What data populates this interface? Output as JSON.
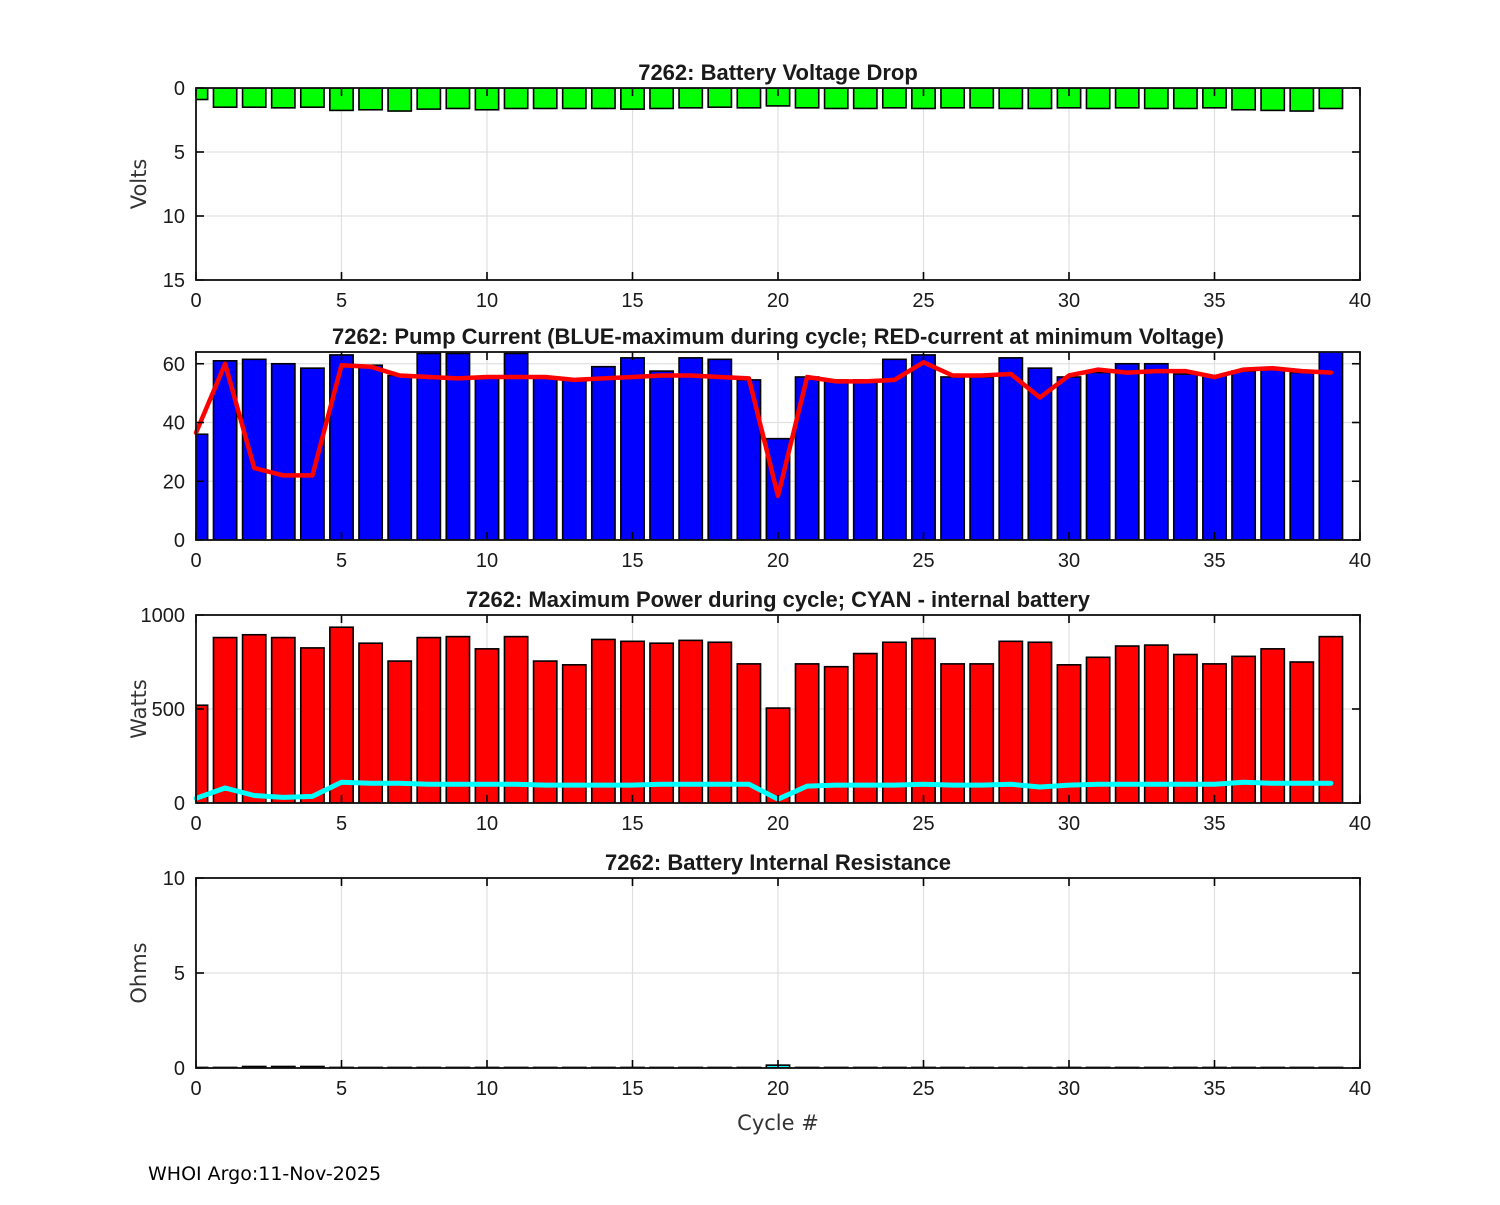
{
  "page": {
    "footer": "WHOI Argo:11-Nov-2025",
    "float_id": "7262"
  },
  "chart_data": [
    {
      "key": "battery_voltage_drop",
      "type": "bar",
      "title": "7262: Battery Voltage Drop",
      "ylabel": "Volts",
      "xlabel": null,
      "ylim": [
        0,
        15
      ],
      "y_reversed": true,
      "yticks": [
        0,
        5,
        10,
        15
      ],
      "xlim": [
        0,
        40
      ],
      "xticks": [
        0,
        5,
        10,
        15,
        20,
        25,
        30,
        35,
        40
      ],
      "grid": true,
      "bars": {
        "name": "voltage-drop-bar",
        "color": "#00FF00",
        "edge": "#000000",
        "width": 0.8,
        "values": [
          0.9,
          1.5,
          1.5,
          1.55,
          1.5,
          1.75,
          1.7,
          1.8,
          1.65,
          1.6,
          1.7,
          1.6,
          1.6,
          1.6,
          1.6,
          1.65,
          1.6,
          1.55,
          1.5,
          1.55,
          1.4,
          1.55,
          1.6,
          1.6,
          1.55,
          1.6,
          1.55,
          1.55,
          1.6,
          1.6,
          1.55,
          1.6,
          1.55,
          1.6,
          1.6,
          1.55,
          1.7,
          1.75,
          1.8,
          1.6
        ]
      },
      "line": null
    },
    {
      "key": "pump_current",
      "type": "bar+line",
      "title": "7262: Pump Current (BLUE-maximum during cycle; RED-current at minimum Voltage)",
      "ylabel": null,
      "xlabel": null,
      "ylim": [
        0,
        64
      ],
      "y_reversed": false,
      "yticks": [
        0,
        20,
        40,
        60
      ],
      "xlim": [
        0,
        40
      ],
      "xticks": [
        0,
        5,
        10,
        15,
        20,
        25,
        30,
        35,
        40
      ],
      "grid": true,
      "bars": {
        "name": "max-current-bar",
        "color": "#0000FF",
        "edge": "#000000",
        "width": 0.8,
        "values": [
          36,
          61,
          61.5,
          60,
          58.5,
          63,
          59.5,
          56,
          63.5,
          63.5,
          55.5,
          63.5,
          55.5,
          54.5,
          59,
          62,
          57.5,
          62,
          61.5,
          54.5,
          34.5,
          55.5,
          54.5,
          54.5,
          61.5,
          63,
          55.5,
          55.5,
          62,
          58.5,
          55.5,
          57,
          60,
          60,
          56.5,
          56,
          57.5,
          58,
          57,
          65
        ]
      },
      "line": {
        "name": "current-at-min-voltage-line",
        "color": "#FF0000",
        "width": 4.5,
        "values": [
          36.5,
          60,
          24.5,
          22,
          22,
          59.5,
          59,
          56,
          55.5,
          55,
          55.5,
          55.5,
          55.5,
          54.5,
          55,
          55.5,
          56,
          56,
          55.5,
          55,
          15,
          55.5,
          54,
          54,
          54.5,
          60.5,
          56,
          56,
          56.5,
          48.5,
          56,
          58,
          57,
          57.5,
          57.5,
          55.5,
          58,
          58.5,
          57.5,
          57
        ]
      }
    },
    {
      "key": "max_power",
      "type": "bar+line",
      "title": "7262: Maximum Power during cycle; CYAN - internal battery",
      "ylabel": "Watts",
      "xlabel": null,
      "ylim": [
        0,
        1000
      ],
      "y_reversed": false,
      "yticks": [
        0,
        500,
        1000
      ],
      "xlim": [
        0,
        40
      ],
      "xticks": [
        0,
        5,
        10,
        15,
        20,
        25,
        30,
        35,
        40
      ],
      "grid": true,
      "bars": {
        "name": "max-power-bar",
        "color": "#FF0000",
        "edge": "#000000",
        "width": 0.8,
        "values": [
          520,
          880,
          895,
          880,
          825,
          935,
          850,
          755,
          880,
          885,
          820,
          885,
          755,
          735,
          870,
          860,
          850,
          865,
          855,
          740,
          505,
          740,
          725,
          795,
          855,
          875,
          740,
          740,
          860,
          855,
          735,
          775,
          835,
          840,
          790,
          740,
          780,
          820,
          750,
          885
        ]
      },
      "line": {
        "name": "internal-battery-power-line",
        "color": "#00FFFF",
        "width": 5,
        "values": [
          25,
          80,
          40,
          30,
          35,
          110,
          105,
          105,
          100,
          100,
          100,
          100,
          95,
          95,
          95,
          95,
          100,
          100,
          100,
          100,
          20,
          90,
          95,
          95,
          95,
          100,
          95,
          95,
          100,
          85,
          95,
          100,
          100,
          100,
          100,
          100,
          110,
          105,
          105,
          105
        ]
      }
    },
    {
      "key": "battery_internal_resistance",
      "type": "bar",
      "title": "7262: Battery Internal Resistance",
      "ylabel": "Ohms",
      "xlabel": "Cycle #",
      "ylim": [
        0,
        10
      ],
      "y_reversed": false,
      "yticks": [
        0,
        5,
        10
      ],
      "xlim": [
        0,
        40
      ],
      "xticks": [
        0,
        5,
        10,
        15,
        20,
        25,
        30,
        35,
        40
      ],
      "grid": true,
      "bars": {
        "name": "resistance-bar",
        "color": "#111111",
        "edge": "#000000",
        "width": 0.8,
        "values": [
          0.03,
          0.03,
          0.08,
          0.08,
          0.08,
          0.03,
          0.03,
          0.03,
          0.03,
          0.03,
          0.03,
          0.03,
          0.03,
          0.03,
          0.03,
          0.03,
          0.03,
          0.03,
          0.03,
          0.03,
          0.15,
          0.03,
          0.03,
          0.03,
          0.03,
          0.03,
          0.03,
          0.03,
          0.03,
          0.03,
          0.03,
          0.03,
          0.03,
          0.03,
          0.03,
          0.03,
          0.03,
          0.03,
          0.03,
          0.03
        ],
        "color_overrides": {
          "20": "#00FFFF"
        }
      },
      "line": null
    }
  ]
}
